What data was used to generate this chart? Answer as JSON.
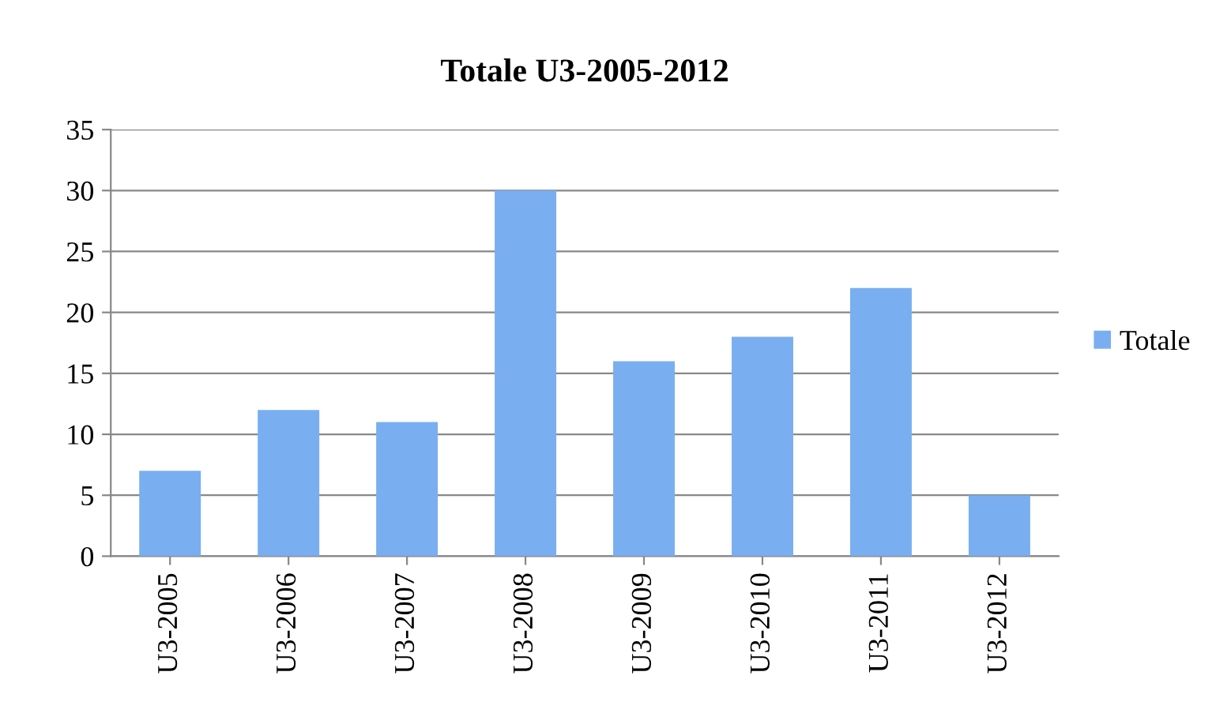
{
  "chart_data": {
    "type": "bar",
    "title": "Totale U3-2005-2012",
    "categories": [
      "U3-2005",
      "U3-2006",
      "U3-2007",
      "U3-2008",
      "U3-2009",
      "U3-2010",
      "U3-2011",
      "U3-2012"
    ],
    "series": [
      {
        "name": "Totale",
        "color": "#79aff0",
        "values": [
          7,
          12,
          11,
          30,
          16,
          18,
          22,
          5
        ]
      }
    ],
    "ylim": [
      0,
      35
    ],
    "yticks": [
      0,
      5,
      10,
      15,
      20,
      25,
      30,
      35
    ],
    "grid": "y",
    "legend": "right"
  }
}
